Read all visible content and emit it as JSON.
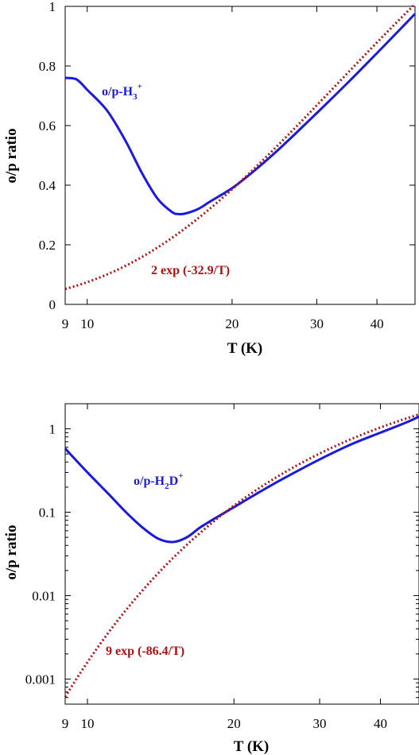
{
  "colors": {
    "model": "#1a1adc",
    "fit": "#b01010",
    "axis": "#000000"
  },
  "chart_data": [
    {
      "type": "line",
      "xscale": "log",
      "yscale": "linear",
      "xlim": [
        9,
        48
      ],
      "ylim": [
        0,
        1
      ],
      "xticks": [
        9,
        10,
        20,
        30,
        40
      ],
      "xtick_labels": [
        "9",
        "10",
        "20",
        "30",
        "40"
      ],
      "yticks": [
        0,
        0.2,
        0.4,
        0.6,
        0.8,
        1
      ],
      "ytick_labels": [
        "0",
        "0.2",
        "0.4",
        "0.6",
        "0.8",
        "1"
      ],
      "xlabel": "T (K)",
      "ylabel": "o/p ratio",
      "grid": false,
      "series": [
        {
          "name": "o/p-H3+",
          "label_main": "o/p-H",
          "label_sub": "3",
          "label_sup": "+",
          "style": "solid",
          "color": "#1a1adc",
          "x": [
            9,
            9.5,
            10,
            11,
            12,
            13,
            14,
            15,
            15.5,
            16,
            17,
            18,
            20,
            22,
            25,
            30,
            35,
            40,
            45,
            48
          ],
          "y": [
            0.76,
            0.755,
            0.72,
            0.65,
            0.55,
            0.44,
            0.355,
            0.31,
            0.303,
            0.305,
            0.32,
            0.345,
            0.39,
            0.442,
            0.52,
            0.642,
            0.748,
            0.843,
            0.928,
            0.975
          ]
        },
        {
          "name": "2 exp (-32.9/T)",
          "label_text": "2 exp (-32.9/T)",
          "style": "dotted",
          "color": "#b01010",
          "formula": {
            "a": 2,
            "b": 32.9
          },
          "x": [
            9,
            10,
            12,
            14,
            16,
            18,
            20,
            25,
            30,
            35,
            40,
            45,
            48
          ],
          "y": [
            0.052,
            0.074,
            0.129,
            0.19,
            0.256,
            0.322,
            0.386,
            0.536,
            0.668,
            0.782,
            0.879,
            0.962,
            1.005
          ]
        }
      ]
    },
    {
      "type": "line",
      "xscale": "log",
      "yscale": "log",
      "xlim": [
        9,
        48
      ],
      "ylim": [
        0.0005,
        2
      ],
      "xticks": [
        9,
        10,
        20,
        30,
        40
      ],
      "xtick_labels": [
        "9",
        "10",
        "20",
        "30",
        "40"
      ],
      "yticks": [
        0.001,
        0.01,
        0.1,
        1
      ],
      "ytick_labels": [
        "0.001",
        "0.01",
        "0.1",
        "1"
      ],
      "xlabel": "T (K)",
      "ylabel": "o/p ratio",
      "grid": false,
      "series": [
        {
          "name": "o/p-H2D+",
          "label_main": "o/p-H",
          "label_sub": "2",
          "label_after": "D",
          "label_sup": "+",
          "style": "solid",
          "color": "#1a1adc",
          "x": [
            9,
            10,
            11,
            12,
            13,
            14,
            15,
            16,
            17,
            18,
            20,
            22,
            25,
            30,
            35,
            40,
            45,
            48
          ],
          "y": [
            0.58,
            0.3,
            0.17,
            0.1,
            0.065,
            0.048,
            0.044,
            0.05,
            0.065,
            0.08,
            0.115,
            0.16,
            0.245,
            0.43,
            0.66,
            0.9,
            1.18,
            1.4
          ],
          "extra": {}
        },
        {
          "name": "9 exp (-86.4/T)",
          "label_text": "9 exp (-86.4/T)",
          "style": "dotted",
          "color": "#b01010",
          "formula": {
            "a": 9,
            "b": 86.4
          },
          "x": [
            9,
            10,
            12,
            14,
            16,
            18,
            20,
            25,
            30,
            35,
            40,
            45,
            48
          ],
          "y": [
            0.00061,
            0.00159,
            0.00672,
            0.0188,
            0.0406,
            0.0741,
            0.1197,
            0.284,
            0.505,
            0.761,
            1.037,
            1.32,
            1.49
          ]
        }
      ]
    }
  ]
}
